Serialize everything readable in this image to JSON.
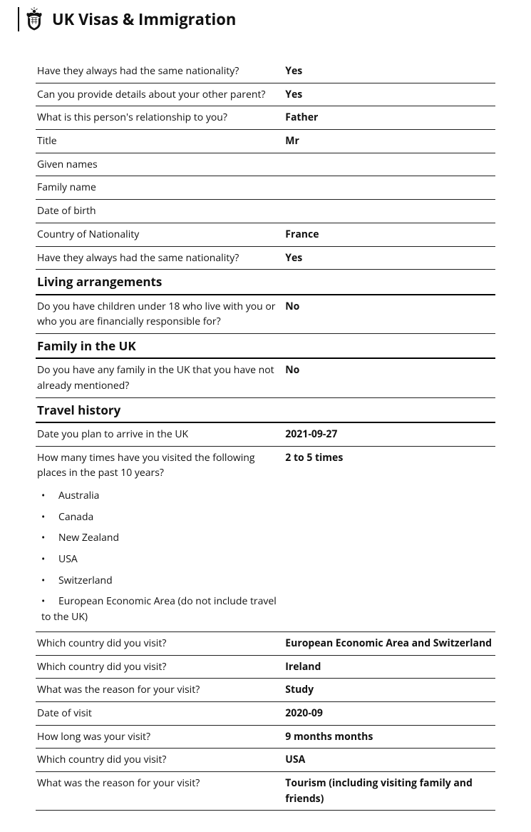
{
  "header": {
    "title": "UK Visas & Immigration"
  },
  "rows": [
    {
      "type": "qa",
      "q": "Have they always had the same nationality?",
      "a": "Yes"
    },
    {
      "type": "qa",
      "q": "Can you provide details about your other parent?",
      "a": "Yes"
    },
    {
      "type": "qa",
      "q": "What is this person's relationship to you?",
      "a": "Father"
    },
    {
      "type": "qa",
      "q": "Title",
      "a": "Mr"
    },
    {
      "type": "qa",
      "q": "Given names",
      "a": ""
    },
    {
      "type": "qa",
      "q": "Family name",
      "a": ""
    },
    {
      "type": "qa",
      "q": "Date of birth",
      "a": ""
    },
    {
      "type": "qa",
      "q": "Country of Nationality",
      "a": "France"
    },
    {
      "type": "qa",
      "q": "Have they always had the same nationality?",
      "a": "Yes"
    },
    {
      "type": "section",
      "title": "Living arrangements"
    },
    {
      "type": "qa",
      "q": "Do you have children under 18 who live with you or who you are financially responsible for?",
      "a": "No"
    },
    {
      "type": "section",
      "title": "Family in the UK"
    },
    {
      "type": "qa",
      "q": "Do you have any family in the UK that you have not already mentioned?",
      "a": "No"
    },
    {
      "type": "section",
      "title": "Travel history"
    },
    {
      "type": "qa",
      "q": "Date you plan to arrive in the UK",
      "a": "2021-09-27"
    },
    {
      "type": "qalist",
      "q": "How many times have you visited the following places in the past 10 years?",
      "a": "2 to 5 times",
      "items": [
        "Australia",
        "Canada",
        "New Zealand",
        "USA",
        "Switzerland",
        "European Economic Area (do not include travel to the UK)"
      ]
    },
    {
      "type": "qa",
      "q": "Which country did you visit?",
      "a": "European Economic Area and Switzerland"
    },
    {
      "type": "qa",
      "q": "Which country did you visit?",
      "a": "Ireland"
    },
    {
      "type": "qa",
      "q": "What was the reason for your visit?",
      "a": "Study"
    },
    {
      "type": "qa",
      "q": "Date of visit",
      "a": "2020-09"
    },
    {
      "type": "qa",
      "q": "How long was your visit?",
      "a": "9 months months"
    },
    {
      "type": "qa",
      "q": "Which country did you visit?",
      "a": "USA"
    },
    {
      "type": "qa",
      "q": "What was the reason for your visit?",
      "a": "Tourism (including visiting family and friends)"
    }
  ]
}
